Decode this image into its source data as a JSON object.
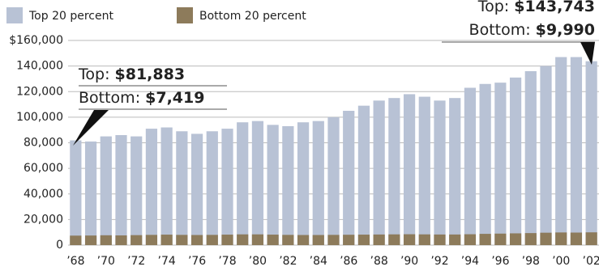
{
  "chart_data": {
    "type": "bar",
    "categories": [
      "’68",
      null,
      "’70",
      null,
      "’72",
      null,
      "’74",
      null,
      "’76",
      null,
      "’78",
      null,
      "’80",
      null,
      "’82",
      null,
      "’84",
      null,
      "’86",
      null,
      "’88",
      null,
      "’90",
      null,
      "’92",
      null,
      "’94",
      null,
      "’96",
      null,
      "’98",
      null,
      "’00",
      null,
      "’02"
    ],
    "series": [
      {
        "name": "Top 20 percent",
        "color": "#b8c2d5",
        "values": [
          81883,
          81000,
          85000,
          86000,
          85000,
          91000,
          92000,
          89000,
          87000,
          89000,
          91000,
          96000,
          97000,
          94000,
          93000,
          96000,
          97000,
          100000,
          105000,
          109000,
          113000,
          115000,
          118000,
          116000,
          113000,
          115000,
          123000,
          126000,
          127000,
          131000,
          136000,
          140000,
          147000,
          147000,
          143743
        ]
      },
      {
        "name": "Bottom 20 percent",
        "color": "#8d7b5b",
        "values": [
          7419,
          7500,
          7700,
          7600,
          7800,
          8000,
          8200,
          8000,
          7900,
          8000,
          8200,
          8400,
          8400,
          8200,
          8000,
          7900,
          7900,
          8000,
          8100,
          8200,
          8300,
          8400,
          8500,
          8400,
          8300,
          8300,
          8500,
          8800,
          9000,
          9200,
          9400,
          9700,
          9900,
          9800,
          9990
        ]
      }
    ],
    "ylim": [
      0,
      160000
    ],
    "yticks": [
      0,
      {
        "value": 20000,
        "label": "20,000"
      },
      {
        "value": 40000,
        "label": "40,000"
      },
      {
        "value": 60000,
        "label": "60,000"
      },
      {
        "value": 80000,
        "label": "80,000"
      },
      {
        "value": 100000,
        "label": "100,000"
      },
      {
        "value": 120000,
        "label": "120,000"
      },
      {
        "value": 140000,
        "label": "140,000"
      },
      {
        "value": 160000,
        "label": "$160,000"
      }
    ],
    "grid": true,
    "annotations": [
      {
        "top_label": "Top:",
        "top_value": "$81,883",
        "bottom_label": "Bottom:",
        "bottom_value": "$7,419"
      },
      {
        "top_label": "Top:",
        "top_value": "$143,743",
        "bottom_label": "Bottom:",
        "bottom_value": "$9,990"
      }
    ]
  }
}
